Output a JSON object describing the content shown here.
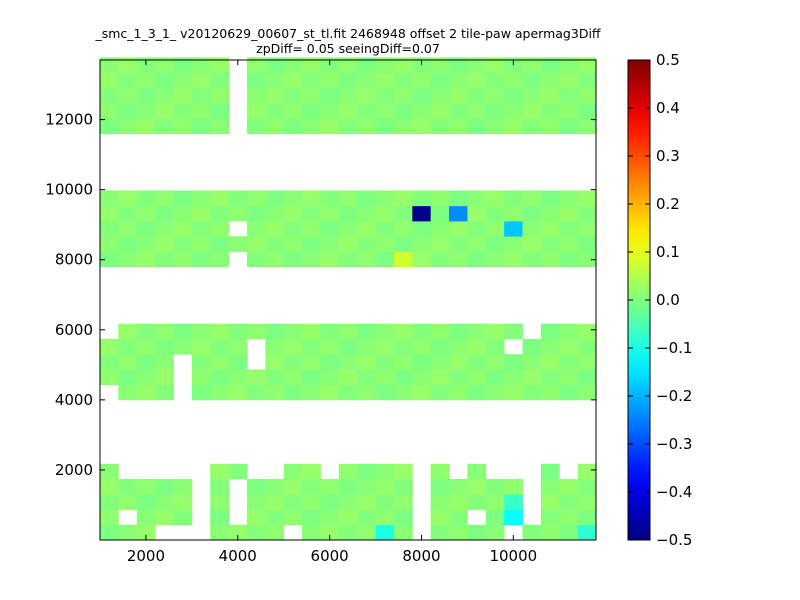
{
  "chart_data": {
    "type": "heatmap",
    "title_lines": [
      "_smc_1_3_1_ v20120629_00607_st_tl.fit 2468948 offset 2 tile-paw apermag3Diff",
      "zpDiff= 0.05 seeingDiff=0.07"
    ],
    "xlabel": "",
    "ylabel": "",
    "xlim": [
      1000,
      11800
    ],
    "ylim": [
      0,
      13700
    ],
    "x_ticks": [
      2000,
      4000,
      6000,
      8000,
      10000
    ],
    "y_ticks": [
      2000,
      4000,
      6000,
      8000,
      10000,
      12000
    ],
    "colormap": "jet",
    "color_range": [
      -0.5,
      0.5
    ],
    "colorbar_ticks": [
      0.5,
      0.4,
      0.3,
      0.2,
      0.1,
      0.0,
      -0.1,
      -0.2,
      -0.3,
      -0.4,
      -0.5
    ],
    "colorbar_tick_labels": [
      "0.5",
      "0.4",
      "0.3",
      "0.2",
      "0.1",
      "0.0",
      "−0.1",
      "−0.2",
      "−0.3",
      "−0.4",
      "−0.5"
    ],
    "cell_size": [
      330,
      435
    ],
    "bands": [
      {
        "y_from": 0,
        "y_to": 2200
      },
      {
        "y_from": 4000,
        "y_to": 6100
      },
      {
        "y_from": 7800,
        "y_to": 9900
      },
      {
        "y_from": 11600,
        "y_to": 13700
      }
    ],
    "band_masks": [
      [
        "111000111101111110111101111",
        "101110101111111110110110111",
        "111110101111111110111110111",
        "111110101111111110111110111",
        "100000110011011110101000101"
      ],
      [
        "011101111111111111111111111",
        "111101111111111111111111111",
        "111101110111111111111111111",
        "111111110111111111111101111",
        "011111111111111111111110111"
      ],
      [
        "111111101111111111111111111",
        "111111111111111111111111111",
        "111111101111111111111111111",
        "111111111111111111111111111",
        "111111111111111111111111111"
      ],
      [
        "111111101111111111111111111",
        "111111101111111111111111111",
        "111111101111111111111111111",
        "111111101111111111111111111",
        "111111101111111111111111111"
      ]
    ],
    "base_value": 0.01,
    "special_cells": [
      {
        "x": 7960,
        "y": 9240,
        "value": -0.49
      },
      {
        "x": 8600,
        "y": 9240,
        "value": -0.24
      },
      {
        "x": 9900,
        "y": 8870,
        "value": -0.18
      },
      {
        "x": 7600,
        "y": 8150,
        "value": 0.08
      },
      {
        "x": 7230,
        "y": 200,
        "value": -0.1
      },
      {
        "x": 9900,
        "y": 510,
        "value": -0.12
      },
      {
        "x": 10230,
        "y": 510,
        "value": -0.12
      },
      {
        "x": 10560,
        "y": 510,
        "value": -0.13
      },
      {
        "x": 11560,
        "y": 200,
        "value": -0.08
      },
      {
        "x": 9900,
        "y": 930,
        "value": -0.07
      },
      {
        "x": 10230,
        "y": 930,
        "value": -0.06
      },
      {
        "x": 10560,
        "y": 930,
        "value": -0.07
      }
    ]
  }
}
